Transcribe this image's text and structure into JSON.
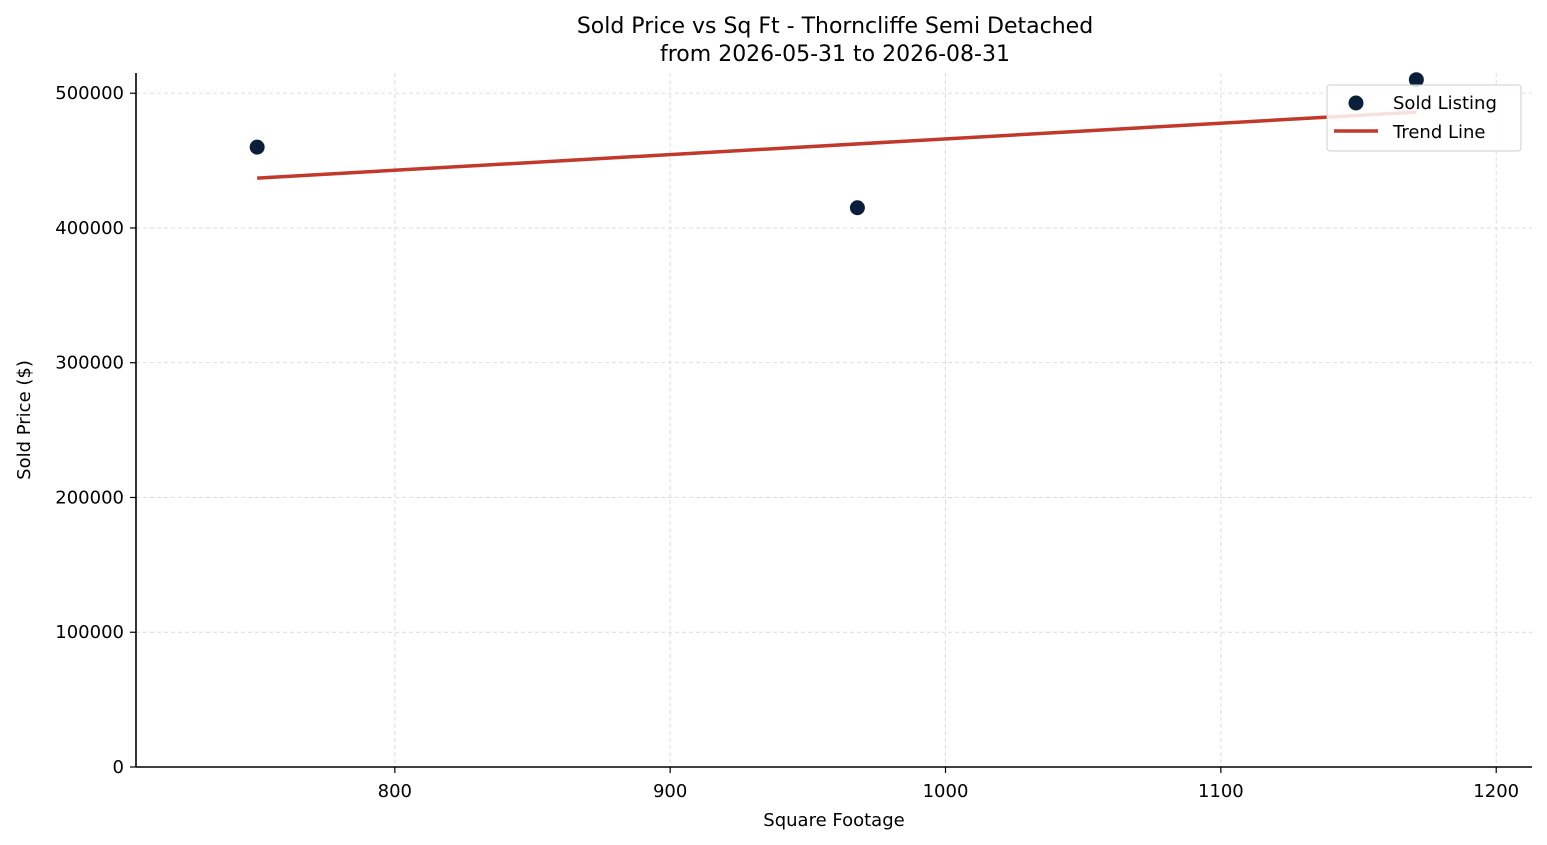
{
  "chart_data": {
    "type": "scatter",
    "title": "Sold Price vs Sq Ft - Thorncliffe Semi Detached",
    "subtitle": "from 2026-05-31 to 2026-08-31",
    "xlabel": "Square Footage",
    "ylabel": "Sold Price ($)",
    "xlim": [
      706,
      1213
    ],
    "ylim": [
      0,
      515000
    ],
    "x_ticks": [
      800,
      900,
      1000,
      1100,
      1200
    ],
    "y_ticks": [
      0,
      100000,
      200000,
      300000,
      400000,
      500000
    ],
    "grid": true,
    "legend_position": "top-right",
    "series": [
      {
        "name": "Sold Listing",
        "kind": "scatter",
        "color": "#0b1f3a",
        "points": [
          {
            "x": 750,
            "y": 460000
          },
          {
            "x": 968,
            "y": 415000
          },
          {
            "x": 1171,
            "y": 510000
          }
        ]
      },
      {
        "name": "Trend Line",
        "kind": "line",
        "color": "#c0392b",
        "points": [
          {
            "x": 750,
            "y": 437000
          },
          {
            "x": 1171,
            "y": 486000
          }
        ]
      }
    ]
  }
}
